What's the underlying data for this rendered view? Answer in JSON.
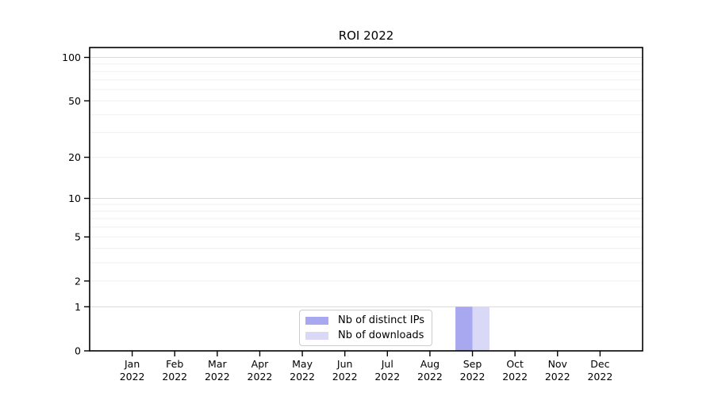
{
  "chart_data": {
    "type": "bar",
    "title": "ROI 2022",
    "categories": [
      "Jan",
      "Feb",
      "Mar",
      "Apr",
      "May",
      "Jun",
      "Jul",
      "Aug",
      "Sep",
      "Oct",
      "Nov",
      "Dec"
    ],
    "category_year_label": "2022",
    "series": [
      {
        "name": "Nb of distinct IPs",
        "color": "#a8a8f0",
        "values": [
          0,
          0,
          0,
          0,
          0,
          0,
          0,
          0,
          1,
          0,
          0,
          0
        ]
      },
      {
        "name": "Nb of downloads",
        "color": "#d9d9f7",
        "values": [
          0,
          0,
          0,
          0,
          0,
          0,
          0,
          0,
          1,
          0,
          0,
          0
        ]
      }
    ],
    "xlabel": "",
    "ylabel": "",
    "yscale": "log1p",
    "ylim": [
      0,
      117
    ],
    "yticks": [
      0,
      1,
      2,
      5,
      10,
      20,
      50,
      100
    ],
    "grid": {
      "orientation": "horizontal",
      "major_values": [
        1,
        10,
        100
      ],
      "minor_values": [
        2,
        3,
        4,
        5,
        6,
        7,
        8,
        9,
        20,
        30,
        40,
        50,
        60,
        70,
        80,
        90
      ],
      "major_color": "#d9d9d9",
      "minor_color": "#f0f0f0"
    },
    "legend_position": "lower center",
    "bar_group": "side-by-side, centered on month tick",
    "axis_color": "#000000",
    "text_color": "#000000",
    "background_color": "#ffffff"
  }
}
